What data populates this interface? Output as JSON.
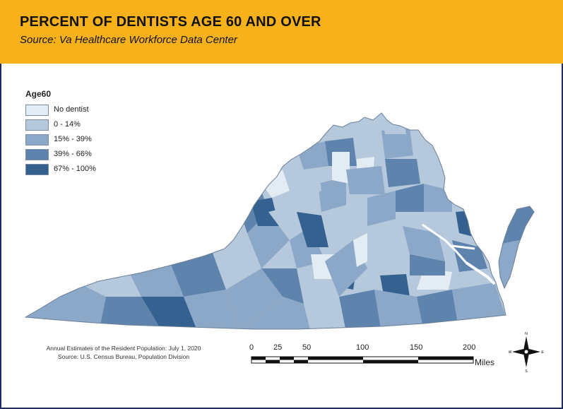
{
  "header": {
    "title": "PERCENT OF DENTISTS AGE 60 AND OVER",
    "subtitle": "Source: Va Healthcare Workforce Data Center"
  },
  "legend": {
    "title": "Age60",
    "items": [
      {
        "label": "No dentist",
        "color": "#e3ecf2"
      },
      {
        "label": "0 - 14%",
        "color": "#b6c9dc"
      },
      {
        "label": "15% - 39%",
        "color": "#8ca8c8"
      },
      {
        "label": "39% - 66%",
        "color": "#5e84ad"
      },
      {
        "label": "67% - 100%",
        "color": "#34618f"
      }
    ]
  },
  "credit": {
    "line1": "Annual Estimates of the Resident Population: July 1, 2020",
    "line2": "Source: U.S. Census Bureau, Population Division"
  },
  "scale_bar": {
    "ticks": [
      "0",
      "25",
      "50",
      "100",
      "150",
      "200"
    ],
    "unit": "Miles"
  },
  "compass": {
    "north": "N",
    "south": "S",
    "east": "E",
    "west": "W"
  }
}
